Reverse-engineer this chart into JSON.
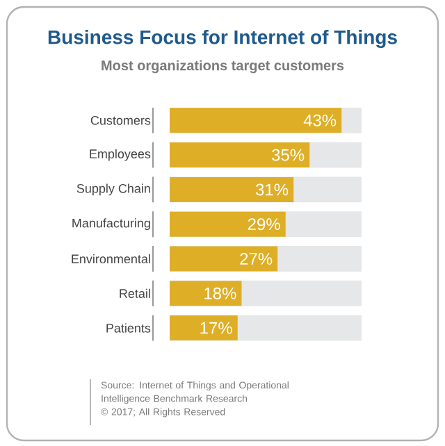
{
  "chart_data": {
    "type": "bar",
    "orientation": "horizontal",
    "title": "Business Focus for Internet of Things",
    "subtitle": "Most organizations target customers",
    "categories": [
      "Customers",
      "Employees",
      "Supply Chain",
      "Manufacturing",
      "Environmental",
      "Retail",
      "Patients"
    ],
    "values": [
      43,
      35,
      31,
      29,
      27,
      18,
      17
    ],
    "value_labels": [
      "43%",
      "35%",
      "31%",
      "29%",
      "27%",
      "18%",
      "17%"
    ],
    "color": "#deae26",
    "xlim": [
      0,
      48
    ],
    "annotations": [
      "Source: Internet of Things and Operational Intelligence Benchmark Research",
      "© 2017; All Rights Reserved"
    ]
  }
}
